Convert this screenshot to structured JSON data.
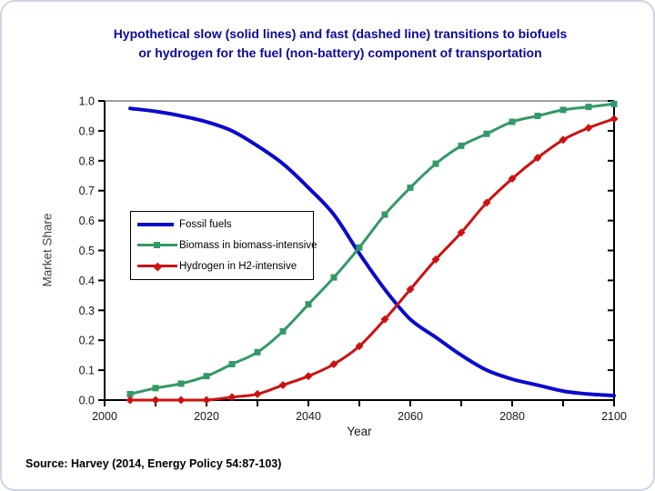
{
  "slide": {
    "title_line1": "Hypothetical slow (solid lines) and fast (dashed line) transitions to biofuels",
    "title_line2": "or hydrogen for the fuel (non-battery) component of transportation",
    "source": "Source: Harvey (2014, Energy Policy 54:87-103)"
  },
  "chart_data": {
    "type": "line",
    "title": "",
    "xlabel": "Year",
    "ylabel": "Market Share",
    "xlim": [
      2000,
      2100
    ],
    "ylim": [
      0.0,
      1.0
    ],
    "x_major_ticks": [
      2000,
      2020,
      2040,
      2060,
      2080,
      2100
    ],
    "x_minor_tick_step": 10,
    "y_tick_labels": [
      "0.0",
      "0.1",
      "0.2",
      "0.3",
      "0.4",
      "0.5",
      "0.6",
      "0.7",
      "0.8",
      "0.9",
      "1.0"
    ],
    "grid": "top border line only",
    "top_gridline_color": "#9e9e9e",
    "axis_color": "#000000",
    "legend_position": "inside-middle-left",
    "x": [
      2005,
      2010,
      2015,
      2020,
      2025,
      2030,
      2035,
      2040,
      2045,
      2050,
      2055,
      2060,
      2065,
      2070,
      2075,
      2080,
      2085,
      2090,
      2095,
      2100
    ],
    "series": [
      {
        "name": "Fossil fuels",
        "color": "#0a0ace",
        "marker": "none",
        "line_width": 4,
        "values": [
          0.975,
          0.965,
          0.95,
          0.93,
          0.9,
          0.85,
          0.79,
          0.71,
          0.62,
          0.49,
          0.37,
          0.27,
          0.21,
          0.15,
          0.1,
          0.07,
          0.05,
          0.03,
          0.02,
          0.015
        ]
      },
      {
        "name": "Biomass in biomass-intensive",
        "color": "#339966",
        "marker": "square",
        "line_width": 3,
        "values": [
          0.02,
          0.04,
          0.055,
          0.08,
          0.12,
          0.16,
          0.23,
          0.32,
          0.41,
          0.51,
          0.62,
          0.71,
          0.79,
          0.85,
          0.89,
          0.93,
          0.95,
          0.97,
          0.98,
          0.99
        ]
      },
      {
        "name": "Hydrogen in H2-intensive",
        "color": "#cd1111",
        "marker": "diamond",
        "line_width": 3,
        "values": [
          0.0,
          0.0,
          0.0,
          0.0,
          0.01,
          0.02,
          0.05,
          0.08,
          0.12,
          0.18,
          0.27,
          0.37,
          0.47,
          0.56,
          0.66,
          0.74,
          0.81,
          0.87,
          0.91,
          0.94
        ]
      }
    ]
  }
}
